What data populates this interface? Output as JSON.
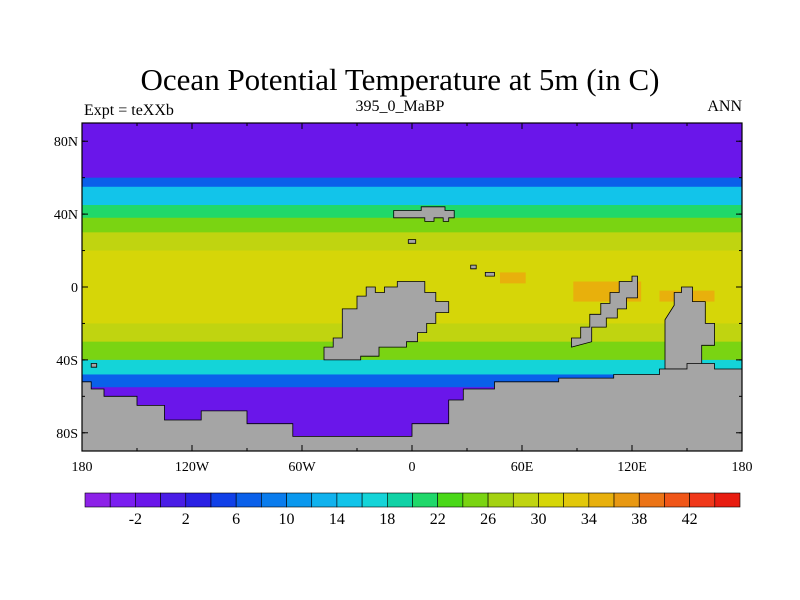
{
  "figure": {
    "title": "Ocean Potential Temperature at 5m (in C)",
    "left_label": "Expt = teXXb",
    "center_label": "395_0_MaBP",
    "right_label": "ANN"
  },
  "axes": {
    "lat_ticks": [
      "80N",
      "40N",
      "0",
      "40S",
      "80S"
    ],
    "lat_values": [
      80,
      40,
      0,
      -40,
      -80
    ],
    "lon_ticks": [
      "180",
      "120W",
      "60W",
      "0",
      "60E",
      "120E",
      "180"
    ],
    "lon_values": [
      -180,
      -120,
      -60,
      0,
      60,
      120,
      180
    ]
  },
  "colorbar": {
    "labels": [
      "-2",
      "2",
      "6",
      "10",
      "14",
      "18",
      "22",
      "26",
      "30",
      "34",
      "38",
      "42"
    ],
    "colors": [
      "#8d22e8",
      "#7a1ef0",
      "#6a16ea",
      "#4a1de6",
      "#2a20e4",
      "#1140e8",
      "#0a60ea",
      "#0a7ced",
      "#0a98ee",
      "#10b2ee",
      "#12c4ea",
      "#14d4d8",
      "#10d2a6",
      "#20d86a",
      "#4ad818",
      "#7ad412",
      "#a4d212",
      "#c0d410",
      "#d6d608",
      "#e2c80a",
      "#e8b00c",
      "#e89812",
      "#ec7416",
      "#f05618",
      "#f0381a",
      "#e81c10"
    ]
  },
  "colors": {
    "land": "#a5a5a5",
    "outline": "#000000"
  },
  "chart_data": {
    "type": "heatmap",
    "title": "Ocean Potential Temperature at 5m (in C)",
    "subtitle": "395_0_MaBP",
    "xlabel": "",
    "ylabel": "",
    "xlim": [
      -180,
      180
    ],
    "ylim": [
      -90,
      90
    ],
    "units": "C",
    "legend": "bottom",
    "levels": [
      -4,
      -2,
      0,
      2,
      4,
      6,
      8,
      10,
      12,
      14,
      16,
      18,
      20,
      22,
      24,
      26,
      28,
      30,
      32,
      34,
      36,
      38,
      40,
      42,
      44
    ],
    "zonal_mean_bands": [
      {
        "lat": [
          60,
          90
        ],
        "value": -2
      },
      {
        "lat": [
          55,
          60
        ],
        "value": 6
      },
      {
        "lat": [
          45,
          55
        ],
        "value": 14
      },
      {
        "lat": [
          38,
          45
        ],
        "value": 20
      },
      {
        "lat": [
          30,
          38
        ],
        "value": 25
      },
      {
        "lat": [
          20,
          30
        ],
        "value": 29
      },
      {
        "lat": [
          -5,
          20
        ],
        "value": 31
      },
      {
        "lat": [
          -20,
          -5
        ],
        "value": 31
      },
      {
        "lat": [
          -30,
          -20
        ],
        "value": 28
      },
      {
        "lat": [
          -40,
          -30
        ],
        "value": 24
      },
      {
        "lat": [
          -48,
          -40
        ],
        "value": 16
      },
      {
        "lat": [
          -55,
          -48
        ],
        "value": 6
      },
      {
        "lat": [
          -65,
          -55
        ],
        "value": -2
      }
    ],
    "land": [
      {
        "name": "northern-continent",
        "polygon": [
          [
            -10,
            38
          ],
          [
            -10,
            42
          ],
          [
            5,
            42
          ],
          [
            5,
            44
          ],
          [
            18,
            44
          ],
          [
            18,
            42
          ],
          [
            23,
            42
          ],
          [
            23,
            38
          ],
          [
            20,
            38
          ],
          [
            20,
            36
          ],
          [
            17,
            36
          ],
          [
            17,
            38
          ],
          [
            12,
            38
          ],
          [
            12,
            36
          ],
          [
            7,
            36
          ],
          [
            7,
            38
          ],
          [
            -10,
            38
          ]
        ]
      },
      {
        "name": "gondwana-west",
        "polygon": [
          [
            -48,
            -40
          ],
          [
            -48,
            -33
          ],
          [
            -43,
            -33
          ],
          [
            -43,
            -28
          ],
          [
            -38,
            -28
          ],
          [
            -38,
            -12
          ],
          [
            -30,
            -12
          ],
          [
            -30,
            -5
          ],
          [
            -25,
            -5
          ],
          [
            -25,
            0
          ],
          [
            -20,
            0
          ],
          [
            -20,
            -3
          ],
          [
            -15,
            -3
          ],
          [
            -15,
            0
          ],
          [
            -8,
            0
          ],
          [
            -8,
            3
          ],
          [
            7,
            3
          ],
          [
            7,
            -3
          ],
          [
            13,
            -3
          ],
          [
            13,
            -8
          ],
          [
            20,
            -8
          ],
          [
            20,
            -14
          ],
          [
            13,
            -14
          ],
          [
            13,
            -20
          ],
          [
            8,
            -20
          ],
          [
            8,
            -25
          ],
          [
            3,
            -25
          ],
          [
            3,
            -30
          ],
          [
            -3,
            -30
          ],
          [
            -3,
            -33
          ],
          [
            -18,
            -33
          ],
          [
            -18,
            -38
          ],
          [
            -28,
            -38
          ],
          [
            -28,
            -40
          ],
          [
            -48,
            -40
          ]
        ]
      },
      {
        "name": "gondwana-east",
        "polygon": [
          [
            87,
            -33
          ],
          [
            87,
            -28
          ],
          [
            92,
            -28
          ],
          [
            92,
            -22
          ],
          [
            97,
            -22
          ],
          [
            97,
            -15
          ],
          [
            103,
            -15
          ],
          [
            103,
            -9
          ],
          [
            108,
            -9
          ],
          [
            108,
            -3
          ],
          [
            113,
            -3
          ],
          [
            113,
            3
          ],
          [
            120,
            3
          ],
          [
            120,
            6
          ],
          [
            123,
            6
          ],
          [
            123,
            -6
          ],
          [
            117,
            -6
          ],
          [
            117,
            -12
          ],
          [
            112,
            -12
          ],
          [
            112,
            -17
          ],
          [
            106,
            -17
          ],
          [
            106,
            -22
          ],
          [
            98,
            -22
          ],
          [
            98,
            -30
          ],
          [
            87,
            -33
          ]
        ]
      },
      {
        "name": "east-peninsula",
        "polygon": [
          [
            138,
            -18
          ],
          [
            138,
            -45
          ],
          [
            158,
            -45
          ],
          [
            158,
            -32
          ],
          [
            165,
            -32
          ],
          [
            165,
            -20
          ],
          [
            160,
            -20
          ],
          [
            160,
            -8
          ],
          [
            153,
            -8
          ],
          [
            153,
            0
          ],
          [
            147,
            0
          ],
          [
            147,
            -3
          ],
          [
            143,
            -3
          ],
          [
            143,
            -10
          ],
          [
            138,
            -18
          ]
        ]
      },
      {
        "name": "southern-landmass",
        "polygon": [
          [
            -180,
            -52
          ],
          [
            -180,
            -90
          ],
          [
            180,
            -90
          ],
          [
            180,
            -45
          ],
          [
            165,
            -45
          ],
          [
            165,
            -42
          ],
          [
            150,
            -42
          ],
          [
            150,
            -45
          ],
          [
            135,
            -45
          ],
          [
            135,
            -48
          ],
          [
            110,
            -48
          ],
          [
            110,
            -50
          ],
          [
            80,
            -50
          ],
          [
            80,
            -52
          ],
          [
            45,
            -52
          ],
          [
            45,
            -56
          ],
          [
            28,
            -56
          ],
          [
            28,
            -62
          ],
          [
            20,
            -62
          ],
          [
            20,
            -75
          ],
          [
            0,
            -75
          ],
          [
            0,
            -82
          ],
          [
            -65,
            -82
          ],
          [
            -65,
            -75
          ],
          [
            -90,
            -75
          ],
          [
            -90,
            -68
          ],
          [
            -115,
            -68
          ],
          [
            -115,
            -73
          ],
          [
            -135,
            -73
          ],
          [
            -135,
            -65
          ],
          [
            -150,
            -65
          ],
          [
            -150,
            -60
          ],
          [
            -168,
            -60
          ],
          [
            -168,
            -56
          ],
          [
            -175,
            -56
          ],
          [
            -175,
            -52
          ],
          [
            -180,
            -52
          ]
        ]
      },
      {
        "name": "small-island-1",
        "polygon": [
          [
            32,
            10
          ],
          [
            32,
            12
          ],
          [
            35,
            12
          ],
          [
            35,
            10
          ]
        ]
      },
      {
        "name": "small-island-2",
        "polygon": [
          [
            40,
            6
          ],
          [
            40,
            8
          ],
          [
            45,
            8
          ],
          [
            45,
            6
          ]
        ]
      },
      {
        "name": "small-island-3",
        "polygon": [
          [
            -175,
            -44
          ],
          [
            -175,
            -42
          ],
          [
            -172,
            -42
          ],
          [
            -172,
            -44
          ]
        ]
      },
      {
        "name": "small-island-4",
        "polygon": [
          [
            -2,
            24
          ],
          [
            -2,
            26
          ],
          [
            2,
            26
          ],
          [
            2,
            24
          ]
        ]
      }
    ]
  }
}
